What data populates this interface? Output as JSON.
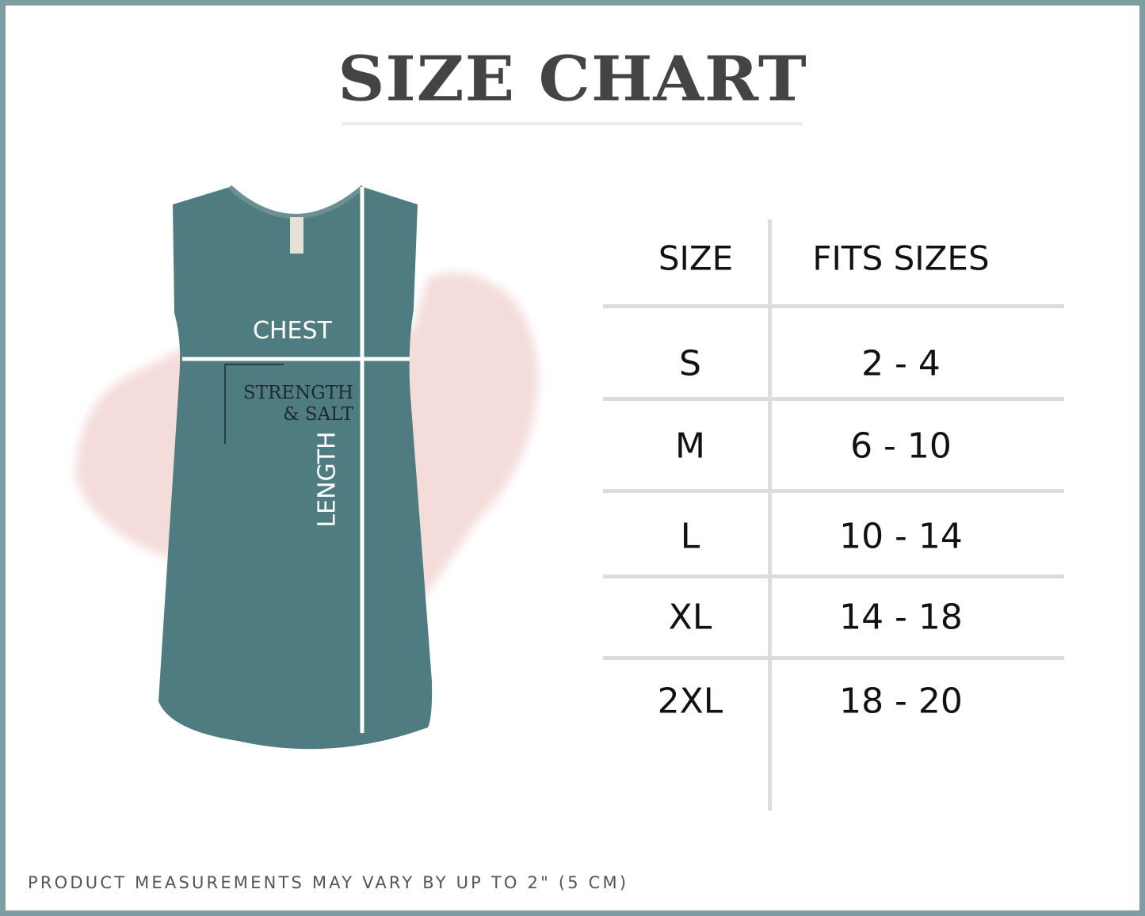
{
  "title": "SIZE CHART",
  "garment": {
    "labels": {
      "chest": "CHEST",
      "length": "LENGTH"
    },
    "print_text": [
      "STRENGTH",
      "& SALT"
    ],
    "color": "#4f7c80",
    "splash_color": "#f3d9d7"
  },
  "table": {
    "headers": [
      "SIZE",
      "FITS SIZES"
    ],
    "rows": [
      {
        "size": "S",
        "fits": "2 - 4"
      },
      {
        "size": "M",
        "fits": "6 - 10"
      },
      {
        "size": "L",
        "fits": "10 - 14"
      },
      {
        "size": "XL",
        "fits": "14 - 18"
      },
      {
        "size": "2XL",
        "fits": "18 - 20"
      }
    ]
  },
  "footer": "PRODUCT MEASUREMENTS MAY VARY BY UP TO 2\" (5 CM)",
  "colors": {
    "frame": "#7e9da2",
    "title": "#444444",
    "rules": "#dcdcdc"
  }
}
